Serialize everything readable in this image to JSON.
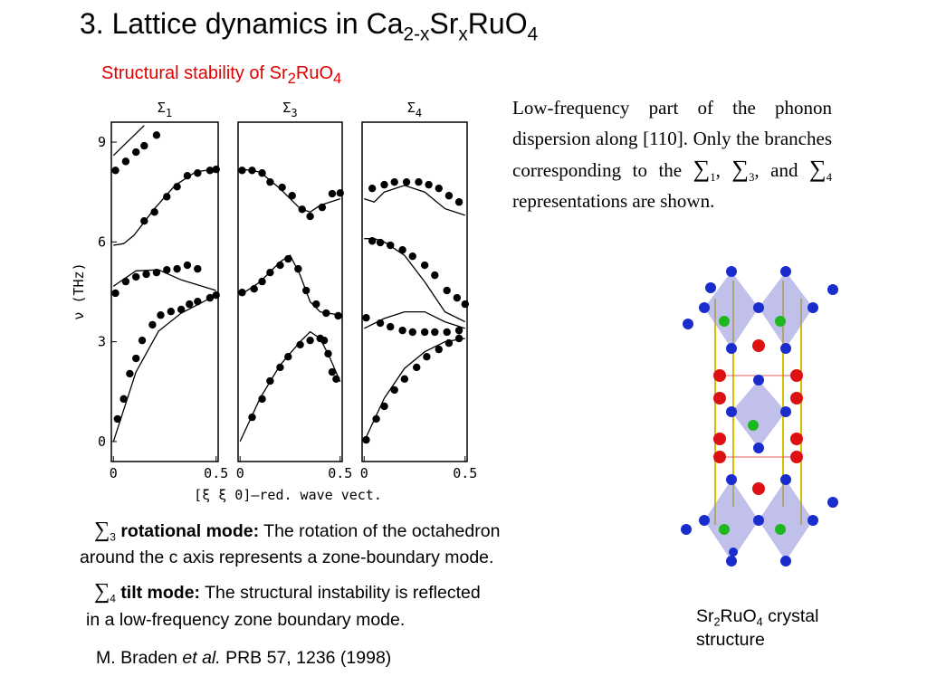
{
  "header": {
    "title": [
      "3. Lattice dynamics in Ca",
      "2-x",
      "Sr",
      "x",
      "RuO",
      "4"
    ]
  },
  "figure": {
    "subtitle": [
      "Structural stability of Sr",
      "2",
      "RuO",
      "4"
    ],
    "y_label": "ν (THz)",
    "x_label": "[ξ ξ 0]—red. wave vect."
  },
  "chart_data": [
    {
      "type": "scatter",
      "title": "Σ",
      "title_sub": "1",
      "xlim": [
        -0.01,
        0.51
      ],
      "ylim": [
        -0.6,
        9.6
      ],
      "xticks": [
        0,
        0.5
      ],
      "yticks": [
        0,
        3,
        6,
        9
      ],
      "series": [
        {
          "mode": "markers",
          "color": "#000000",
          "x": [
            0.01,
            0.06,
            0.11,
            0.15,
            0.21
          ],
          "values": [
            8.15,
            8.42,
            8.7,
            8.89,
            9.21
          ]
        },
        {
          "mode": "markers",
          "color": "#000000",
          "x": [
            0.15,
            0.2,
            0.26,
            0.31,
            0.36,
            0.41,
            0.47,
            0.5
          ],
          "values": [
            6.63,
            6.9,
            7.36,
            7.66,
            7.99,
            8.07,
            8.15,
            8.18
          ]
        },
        {
          "mode": "markers",
          "color": "#000000",
          "x": [
            0.01,
            0.06,
            0.11,
            0.16,
            0.21,
            0.26,
            0.31,
            0.36,
            0.41
          ],
          "values": [
            4.46,
            4.81,
            4.95,
            5.03,
            5.08,
            5.16,
            5.19,
            5.3,
            5.19
          ]
        },
        {
          "mode": "markers",
          "color": "#000000",
          "x": [
            0.02,
            0.05,
            0.08,
            0.11,
            0.14,
            0.19,
            0.23,
            0.28,
            0.33,
            0.37,
            0.41,
            0.47,
            0.5
          ],
          "values": [
            0.68,
            1.28,
            2.04,
            2.5,
            3.04,
            3.51,
            3.8,
            3.91,
            3.97,
            4.13,
            4.21,
            4.32,
            4.4
          ]
        },
        {
          "mode": "lines",
          "color": "#000000",
          "x": [
            0,
            0.05,
            0.1,
            0.2,
            0.3,
            0.4,
            0.5
          ],
          "values": [
            5.9,
            5.95,
            6.2,
            7.0,
            7.7,
            8.1,
            8.2
          ]
        },
        {
          "mode": "lines",
          "color": "#000000",
          "x": [
            0,
            0.05,
            0.1,
            0.15
          ],
          "values": [
            8.6,
            8.9,
            9.2,
            9.5
          ]
        },
        {
          "mode": "lines",
          "color": "#000000",
          "x": [
            0,
            0.11,
            0.22,
            0.33,
            0.5
          ],
          "values": [
            4.67,
            5.13,
            5.16,
            4.86,
            4.54
          ]
        },
        {
          "mode": "lines",
          "color": "#000000",
          "x": [
            0,
            0.11,
            0.22,
            0.33,
            0.5
          ],
          "values": [
            0,
            2.09,
            3.32,
            3.86,
            4.4
          ]
        }
      ]
    },
    {
      "type": "scatter",
      "title": "Σ",
      "title_sub": "3",
      "xlim": [
        -0.01,
        0.51
      ],
      "ylim": [
        -0.6,
        9.6
      ],
      "xticks": [
        0,
        0.5
      ],
      "series": [
        {
          "mode": "markers",
          "color": "#000000",
          "x": [
            0.01,
            0.06,
            0.11,
            0.15,
            0.21,
            0.26,
            0.31,
            0.35,
            0.41,
            0.46,
            0.5
          ],
          "values": [
            8.15,
            8.15,
            8.07,
            7.8,
            7.64,
            7.39,
            6.98,
            6.77,
            7.04,
            7.45,
            7.47
          ]
        },
        {
          "mode": "markers",
          "color": "#000000",
          "x": [
            0.01,
            0.07,
            0.11,
            0.15,
            0.2,
            0.24,
            0.29,
            0.33,
            0.38,
            0.43,
            0.49
          ],
          "values": [
            4.48,
            4.59,
            4.81,
            5.08,
            5.3,
            5.49,
            5.19,
            4.54,
            4.13,
            3.86,
            3.78
          ]
        },
        {
          "mode": "markers",
          "color": "#000000",
          "x": [
            0.06,
            0.11,
            0.15,
            0.2,
            0.24,
            0.3,
            0.35,
            0.4,
            0.42,
            0.44,
            0.46,
            0.48
          ],
          "values": [
            0.73,
            1.28,
            1.82,
            2.23,
            2.55,
            2.91,
            3.04,
            3.1,
            3.04,
            2.64,
            2.09,
            1.88
          ]
        },
        {
          "mode": "lines",
          "color": "#000000",
          "x": [
            0,
            0.1,
            0.2,
            0.3,
            0.35,
            0.4,
            0.5
          ],
          "values": [
            8.2,
            8.1,
            7.6,
            7.0,
            6.9,
            7.1,
            7.3
          ]
        },
        {
          "mode": "lines",
          "color": "#000000",
          "x": [
            0,
            0.1,
            0.2,
            0.25,
            0.3,
            0.35,
            0.4,
            0.5
          ],
          "values": [
            4.4,
            4.8,
            5.4,
            5.6,
            5.0,
            4.2,
            3.9,
            3.8
          ]
        },
        {
          "mode": "lines",
          "color": "#000000",
          "x": [
            0,
            0.1,
            0.2,
            0.3,
            0.35,
            0.4,
            0.45,
            0.5
          ],
          "values": [
            0,
            1.3,
            2.3,
            3.0,
            3.3,
            3.1,
            2.5,
            1.8
          ]
        }
      ]
    },
    {
      "type": "scatter",
      "title": "Σ",
      "title_sub": "4",
      "xlim": [
        -0.01,
        0.51
      ],
      "ylim": [
        -0.6,
        9.6
      ],
      "xticks": [
        0,
        0.5
      ],
      "series": [
        {
          "mode": "markers",
          "color": "#000000",
          "x": [
            0.04,
            0.1,
            0.15,
            0.21,
            0.27,
            0.32,
            0.37,
            0.42,
            0.47
          ],
          "values": [
            7.61,
            7.72,
            7.8,
            7.8,
            7.8,
            7.72,
            7.61,
            7.39,
            7.2
          ]
        },
        {
          "mode": "markers",
          "color": "#000000",
          "x": [
            0.04,
            0.08,
            0.13,
            0.19,
            0.24,
            0.3,
            0.35,
            0.41,
            0.46,
            0.5
          ],
          "values": [
            6.03,
            5.98,
            5.9,
            5.76,
            5.57,
            5.3,
            5.0,
            4.54,
            4.32,
            4.13
          ]
        },
        {
          "mode": "markers",
          "color": "#000000",
          "x": [
            0.01,
            0.08,
            0.13,
            0.19,
            0.24,
            0.3,
            0.35,
            0.41,
            0.47
          ],
          "values": [
            3.72,
            3.56,
            3.45,
            3.34,
            3.29,
            3.29,
            3.29,
            3.29,
            3.34
          ]
        },
        {
          "mode": "markers",
          "color": "#000000",
          "x": [
            0.01,
            0.06,
            0.1,
            0.15,
            0.2,
            0.26,
            0.31,
            0.37,
            0.42,
            0.47
          ],
          "values": [
            0.05,
            0.68,
            1.06,
            1.55,
            1.88,
            2.23,
            2.55,
            2.77,
            2.96,
            3.1
          ]
        },
        {
          "mode": "lines",
          "color": "#000000",
          "x": [
            0,
            0.05,
            0.1,
            0.2,
            0.3,
            0.4,
            0.5
          ],
          "values": [
            7.3,
            7.2,
            7.5,
            7.7,
            7.5,
            7.0,
            6.8
          ]
        },
        {
          "mode": "lines",
          "color": "#000000",
          "x": [
            0,
            0.05,
            0.1,
            0.2,
            0.3,
            0.4,
            0.5
          ],
          "values": [
            6.1,
            6.1,
            6.0,
            5.6,
            4.8,
            3.9,
            3.6
          ]
        },
        {
          "mode": "lines",
          "color": "#000000",
          "x": [
            0,
            0.1,
            0.2,
            0.3,
            0.4,
            0.5
          ],
          "values": [
            3.4,
            3.7,
            3.9,
            3.9,
            3.6,
            3.4
          ]
        },
        {
          "mode": "lines",
          "color": "#000000",
          "x": [
            0,
            0.1,
            0.2,
            0.3,
            0.4,
            0.5
          ],
          "values": [
            0,
            1.3,
            2.2,
            2.7,
            3.0,
            3.1
          ]
        }
      ]
    }
  ],
  "description": {
    "parts": [
      "Low-frequency part of the phonon dispersion along [110]. Only the branches corresponding to the ",
      "∑",
      "1",
      ", ",
      "∑",
      "3",
      ", and ",
      "∑",
      "4",
      " representations are shown."
    ]
  },
  "notes": [
    {
      "symbol": "∑",
      "sub": "3",
      "bold": "rotational mode:",
      "lines": [
        "The rotation of the octahedron",
        "around the c axis   represents a zone-boundary mode."
      ]
    },
    {
      "symbol": "∑",
      "sub": "4",
      "bold": "tilt mode:",
      "lines": [
        "The structural instability is reflected",
        "in a low-frequency zone boundary  mode."
      ]
    }
  ],
  "caption": [
    "Sr",
    "2",
    "RuO",
    "4",
    " crystal structure"
  ],
  "reference": [
    "M. Braden ",
    "et al.",
    " PRB 57, 1236 (1998)"
  ]
}
